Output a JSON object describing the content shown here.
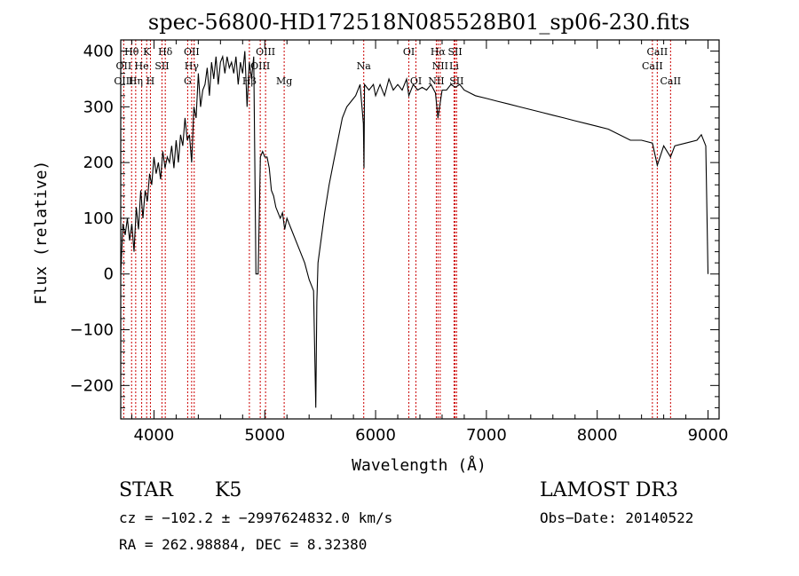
{
  "chart_data": {
    "type": "line",
    "title": "spec-56800-HD172518N085528B01_sp06-230.fits",
    "xlabel": "Wavelength (Å)",
    "ylabel": "Flux (relative)",
    "xlim": [
      3700,
      9100
    ],
    "ylim": [
      -260,
      420
    ],
    "xticks": [
      4000,
      5000,
      6000,
      7000,
      8000,
      9000
    ],
    "xtick_labels": [
      "4000",
      "5000",
      "6000",
      "7000",
      "8000",
      "9000"
    ],
    "yticks": [
      -200,
      -100,
      0,
      100,
      200,
      300,
      400
    ],
    "ytick_labels": [
      "−200",
      "−100",
      "0",
      "100",
      "200",
      "300",
      "400"
    ],
    "grid": false,
    "line_color": "#000000",
    "marker_color": "#cc0000",
    "series": [
      {
        "x": [
          3700,
          3720,
          3740,
          3760,
          3780,
          3800,
          3820,
          3840,
          3860,
          3880,
          3900,
          3920,
          3940,
          3960,
          3980,
          4000,
          4020,
          4040,
          4060,
          4080,
          4100,
          4120,
          4140,
          4160,
          4180,
          4200,
          4220,
          4240,
          4260,
          4280,
          4300,
          4320,
          4340,
          4360,
          4380,
          4400,
          4420,
          4440,
          4460,
          4480,
          4500,
          4520,
          4540,
          4560,
          4580,
          4600,
          4620,
          4640,
          4660,
          4680,
          4700,
          4720,
          4740,
          4760,
          4780,
          4800,
          4820,
          4840,
          4860,
          4880,
          4900,
          4920,
          4940,
          4960,
          4980,
          5000,
          5020,
          5040,
          5060,
          5080,
          5100,
          5120,
          5140,
          5160,
          5180,
          5200,
          5240,
          5280,
          5320,
          5360,
          5400,
          5440,
          5460,
          5470,
          5480,
          5500,
          5540,
          5580,
          5620,
          5660,
          5700,
          5740,
          5780,
          5820,
          5860,
          5890,
          5895,
          5900,
          5940,
          5980,
          6000,
          6040,
          6080,
          6120,
          6160,
          6200,
          6240,
          6280,
          6300,
          6340,
          6380,
          6420,
          6460,
          6500,
          6540,
          6563,
          6600,
          6640,
          6680,
          6720,
          6760,
          6800,
          6900,
          7000,
          7100,
          7200,
          7300,
          7400,
          7500,
          7600,
          7700,
          7800,
          7900,
          8000,
          8100,
          8200,
          8300,
          8400,
          8498,
          8542,
          8600,
          8662,
          8700,
          8800,
          8900,
          8940,
          8980,
          9000
        ],
        "y": [
          0,
          90,
          70,
          100,
          60,
          90,
          40,
          120,
          80,
          150,
          100,
          150,
          130,
          180,
          160,
          210,
          180,
          200,
          170,
          220,
          190,
          210,
          200,
          230,
          190,
          240,
          200,
          250,
          230,
          280,
          240,
          250,
          200,
          300,
          280,
          360,
          300,
          330,
          340,
          370,
          320,
          380,
          350,
          390,
          340,
          380,
          390,
          360,
          390,
          370,
          380,
          360,
          390,
          340,
          380,
          360,
          400,
          300,
          380,
          350,
          390,
          0,
          0,
          210,
          220,
          210,
          210,
          190,
          150,
          140,
          120,
          110,
          100,
          110,
          80,
          100,
          80,
          60,
          40,
          20,
          -10,
          -30,
          -240,
          -50,
          20,
          50,
          110,
          160,
          200,
          240,
          280,
          300,
          310,
          320,
          340,
          270,
          190,
          340,
          330,
          340,
          320,
          340,
          320,
          350,
          330,
          340,
          330,
          350,
          320,
          340,
          330,
          335,
          330,
          340,
          325,
          280,
          330,
          330,
          340,
          335,
          340,
          330,
          320,
          315,
          310,
          305,
          300,
          295,
          290,
          285,
          280,
          275,
          270,
          265,
          260,
          250,
          240,
          240,
          235,
          195,
          230,
          210,
          230,
          235,
          240,
          250,
          230,
          0
        ]
      }
    ],
    "line_ids": [
      {
        "name": "Hθ",
        "x": 3798,
        "row": 0
      },
      {
        "name": "K",
        "x": 3934,
        "row": 0
      },
      {
        "name": "Hδ",
        "x": 4102,
        "row": 0
      },
      {
        "name": "OII",
        "x": 4340,
        "row": 0
      },
      {
        "name": "OIII",
        "x": 5007,
        "row": 0
      },
      {
        "name": "OI",
        "x": 6300,
        "row": 0
      },
      {
        "name": "Hα",
        "x": 6563,
        "row": 0
      },
      {
        "name": "SII",
        "x": 6717,
        "row": 0
      },
      {
        "name": "CaII",
        "x": 8542,
        "row": 0
      },
      {
        "name": "OII",
        "x": 3727,
        "row": 1
      },
      {
        "name": "He",
        "x": 3889,
        "row": 1
      },
      {
        "name": "SII",
        "x": 4072,
        "row": 1
      },
      {
        "name": "Hγ",
        "x": 4340,
        "row": 1
      },
      {
        "name": "NII",
        "x": 6583,
        "row": 1
      },
      {
        "name": "Li",
        "x": 6708,
        "row": 1
      },
      {
        "name": "CaII",
        "x": 8498,
        "row": 1
      },
      {
        "name": "OIII",
        "x": 3727,
        "row": 2
      },
      {
        "name": "Hη",
        "x": 3835,
        "row": 2
      },
      {
        "name": "H",
        "x": 3968,
        "row": 2
      },
      {
        "name": "G",
        "x": 4304,
        "row": 2
      },
      {
        "name": "Hβ",
        "x": 4861,
        "row": 2
      },
      {
        "name": "OIII",
        "x": 4959,
        "row": 1
      },
      {
        "name": "Mg",
        "x": 5175,
        "row": 2
      },
      {
        "name": "Na",
        "x": 5893,
        "row": 1
      },
      {
        "name": "OI",
        "x": 6364,
        "row": 2
      },
      {
        "name": "NII",
        "x": 6548,
        "row": 2
      },
      {
        "name": "SII",
        "x": 6731,
        "row": 2
      },
      {
        "name": "CaII",
        "x": 8662,
        "row": 2
      }
    ],
    "marker_lines": [
      3727,
      3798,
      3835,
      3889,
      3934,
      3968,
      4072,
      4102,
      4304,
      4340,
      4363,
      4861,
      4959,
      5007,
      5175,
      5893,
      6300,
      6364,
      6548,
      6563,
      6583,
      6708,
      6717,
      6731,
      8498,
      8542,
      8662
    ]
  },
  "info": {
    "object_class": "STAR",
    "subclass": "K5",
    "survey": "LAMOST DR3",
    "cz": "cz = −102.2 ± −2997624832.0 km/s",
    "obs_date": "Obs−Date: 20140522",
    "radec": "RA = 262.98884, DEC =   8.32380"
  }
}
